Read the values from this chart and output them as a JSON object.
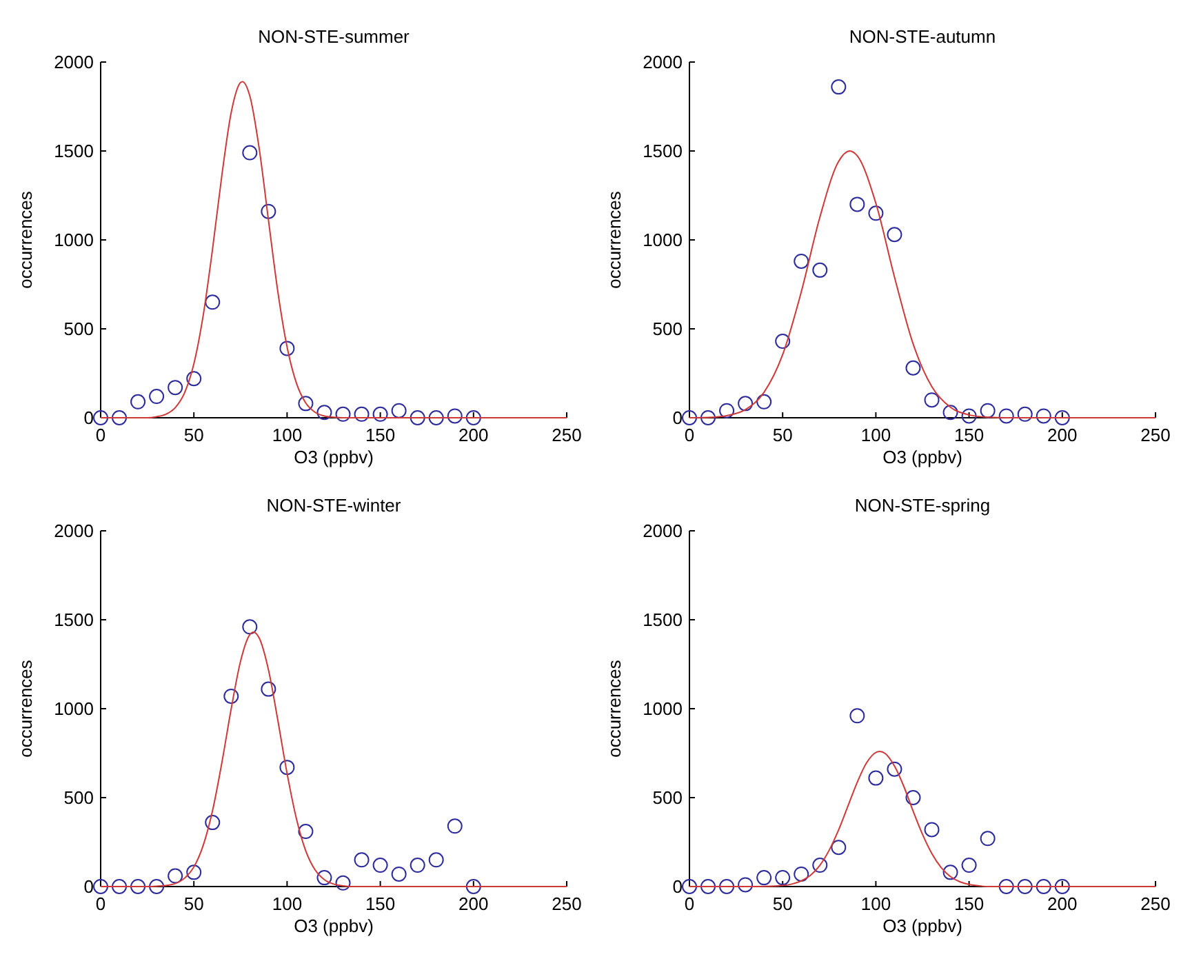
{
  "chart_data": [
    {
      "type": "scatter",
      "title": "NON-STE-summer",
      "xlabel": "O3 (ppbv)",
      "ylabel": "occurrences",
      "xlim": [
        0,
        250
      ],
      "ylim": [
        0,
        2000
      ],
      "xticks": [
        0,
        50,
        100,
        150,
        200,
        250
      ],
      "yticks": [
        0,
        500,
        1000,
        1500,
        2000
      ],
      "grid": false,
      "series": [
        {
          "marker": "circle",
          "color": "#2b2b9e",
          "x": [
            0,
            10,
            20,
            30,
            40,
            50,
            60,
            80,
            90,
            100,
            110,
            120,
            130,
            140,
            150,
            160,
            170,
            180,
            190,
            200
          ],
          "values": [
            0,
            0,
            90,
            120,
            170,
            220,
            650,
            1490,
            1160,
            390,
            80,
            30,
            20,
            20,
            20,
            40,
            0,
            0,
            10,
            0
          ]
        },
        {
          "type": "line",
          "line_style": "solid",
          "color": "#d03838",
          "x": [
            0,
            25,
            30,
            35,
            40,
            45,
            50,
            55,
            60,
            65,
            70,
            75,
            76,
            80,
            85,
            90,
            95,
            100,
            105,
            110,
            115,
            120,
            125,
            130,
            250
          ],
          "values": [
            0,
            0,
            6,
            20,
            57,
            140,
            303,
            575,
            947,
            1362,
            1715,
            1885,
            1890,
            1810,
            1517,
            1112,
            712,
            398,
            195,
            83,
            31,
            10,
            3,
            0,
            0
          ]
        }
      ]
    },
    {
      "type": "scatter",
      "title": "NON-STE-autumn",
      "xlabel": "O3 (ppbv)",
      "ylabel": "occurrences",
      "xlim": [
        0,
        250
      ],
      "ylim": [
        0,
        2000
      ],
      "xticks": [
        0,
        50,
        100,
        150,
        200,
        250
      ],
      "yticks": [
        0,
        500,
        1000,
        1500,
        2000
      ],
      "grid": false,
      "series": [
        {
          "marker": "circle",
          "color": "#2b2b9e",
          "x": [
            0,
            10,
            20,
            30,
            40,
            50,
            60,
            70,
            80,
            90,
            100,
            110,
            120,
            130,
            140,
            150,
            160,
            170,
            180,
            190,
            200
          ],
          "values": [
            0,
            0,
            40,
            80,
            90,
            430,
            880,
            830,
            1860,
            1200,
            1150,
            1030,
            280,
            100,
            30,
            10,
            40,
            10,
            20,
            10,
            0
          ]
        },
        {
          "type": "line",
          "line_style": "solid",
          "color": "#d03838",
          "x": [
            0,
            10,
            20,
            30,
            40,
            50,
            60,
            70,
            80,
            86,
            90,
            100,
            110,
            120,
            130,
            140,
            150,
            160,
            170,
            250
          ],
          "values": [
            0,
            2,
            12,
            46,
            143,
            355,
            708,
            1129,
            1441,
            1500,
            1473,
            1206,
            791,
            415,
            175,
            59,
            16,
            3,
            0,
            0
          ]
        }
      ]
    },
    {
      "type": "scatter",
      "title": "NON-STE-winter",
      "xlabel": "O3 (ppbv)",
      "ylabel": "occurrences",
      "xlim": [
        0,
        250
      ],
      "ylim": [
        0,
        2000
      ],
      "xticks": [
        0,
        50,
        100,
        150,
        200,
        250
      ],
      "yticks": [
        0,
        500,
        1000,
        1500,
        2000
      ],
      "grid": false,
      "series": [
        {
          "marker": "circle",
          "color": "#2b2b9e",
          "x": [
            0,
            10,
            20,
            30,
            40,
            50,
            60,
            70,
            80,
            90,
            100,
            110,
            120,
            130,
            140,
            150,
            160,
            170,
            180,
            190,
            200
          ],
          "values": [
            0,
            0,
            0,
            0,
            60,
            80,
            360,
            1070,
            1460,
            1110,
            670,
            310,
            50,
            20,
            150,
            120,
            70,
            120,
            150,
            340,
            0
          ]
        },
        {
          "type": "line",
          "line_style": "solid",
          "color": "#d03838",
          "x": [
            0,
            25,
            30,
            35,
            40,
            45,
            50,
            55,
            60,
            65,
            70,
            75,
            80,
            82,
            85,
            90,
            95,
            100,
            105,
            110,
            115,
            120,
            125,
            130,
            135,
            250
          ],
          "values": [
            0,
            0,
            2,
            6,
            17,
            47,
            110,
            231,
            426,
            695,
            998,
            1265,
            1416,
            1430,
            1398,
            1219,
            937,
            636,
            382,
            201,
            94,
            39,
            14,
            4,
            0,
            0
          ]
        }
      ]
    },
    {
      "type": "scatter",
      "title": "NON-STE-spring",
      "xlabel": "O3 (ppbv)",
      "ylabel": "occurrences",
      "xlim": [
        0,
        250
      ],
      "ylim": [
        0,
        2000
      ],
      "xticks": [
        0,
        50,
        100,
        150,
        200,
        250
      ],
      "yticks": [
        0,
        500,
        1000,
        1500,
        2000
      ],
      "grid": false,
      "series": [
        {
          "marker": "circle",
          "color": "#2b2b9e",
          "x": [
            0,
            10,
            20,
            30,
            40,
            50,
            60,
            70,
            80,
            90,
            100,
            110,
            120,
            130,
            140,
            150,
            160,
            170,
            180,
            190,
            200
          ],
          "values": [
            0,
            0,
            0,
            10,
            50,
            50,
            70,
            120,
            220,
            960,
            610,
            660,
            500,
            320,
            80,
            120,
            270,
            0,
            0,
            0,
            0
          ]
        },
        {
          "type": "line",
          "line_style": "solid",
          "color": "#d03838",
          "x": [
            0,
            35,
            40,
            50,
            55,
            60,
            65,
            70,
            75,
            80,
            85,
            90,
            95,
            102,
            105,
            110,
            115,
            120,
            125,
            130,
            135,
            140,
            145,
            150,
            155,
            160,
            250
          ],
          "values": [
            0,
            0,
            1,
            6,
            14,
            32,
            64,
            120,
            205,
            318,
            452,
            586,
            696,
            760,
            748,
            677,
            563,
            424,
            294,
            186,
            107,
            56,
            27,
            12,
            5,
            0,
            0
          ]
        }
      ]
    }
  ]
}
